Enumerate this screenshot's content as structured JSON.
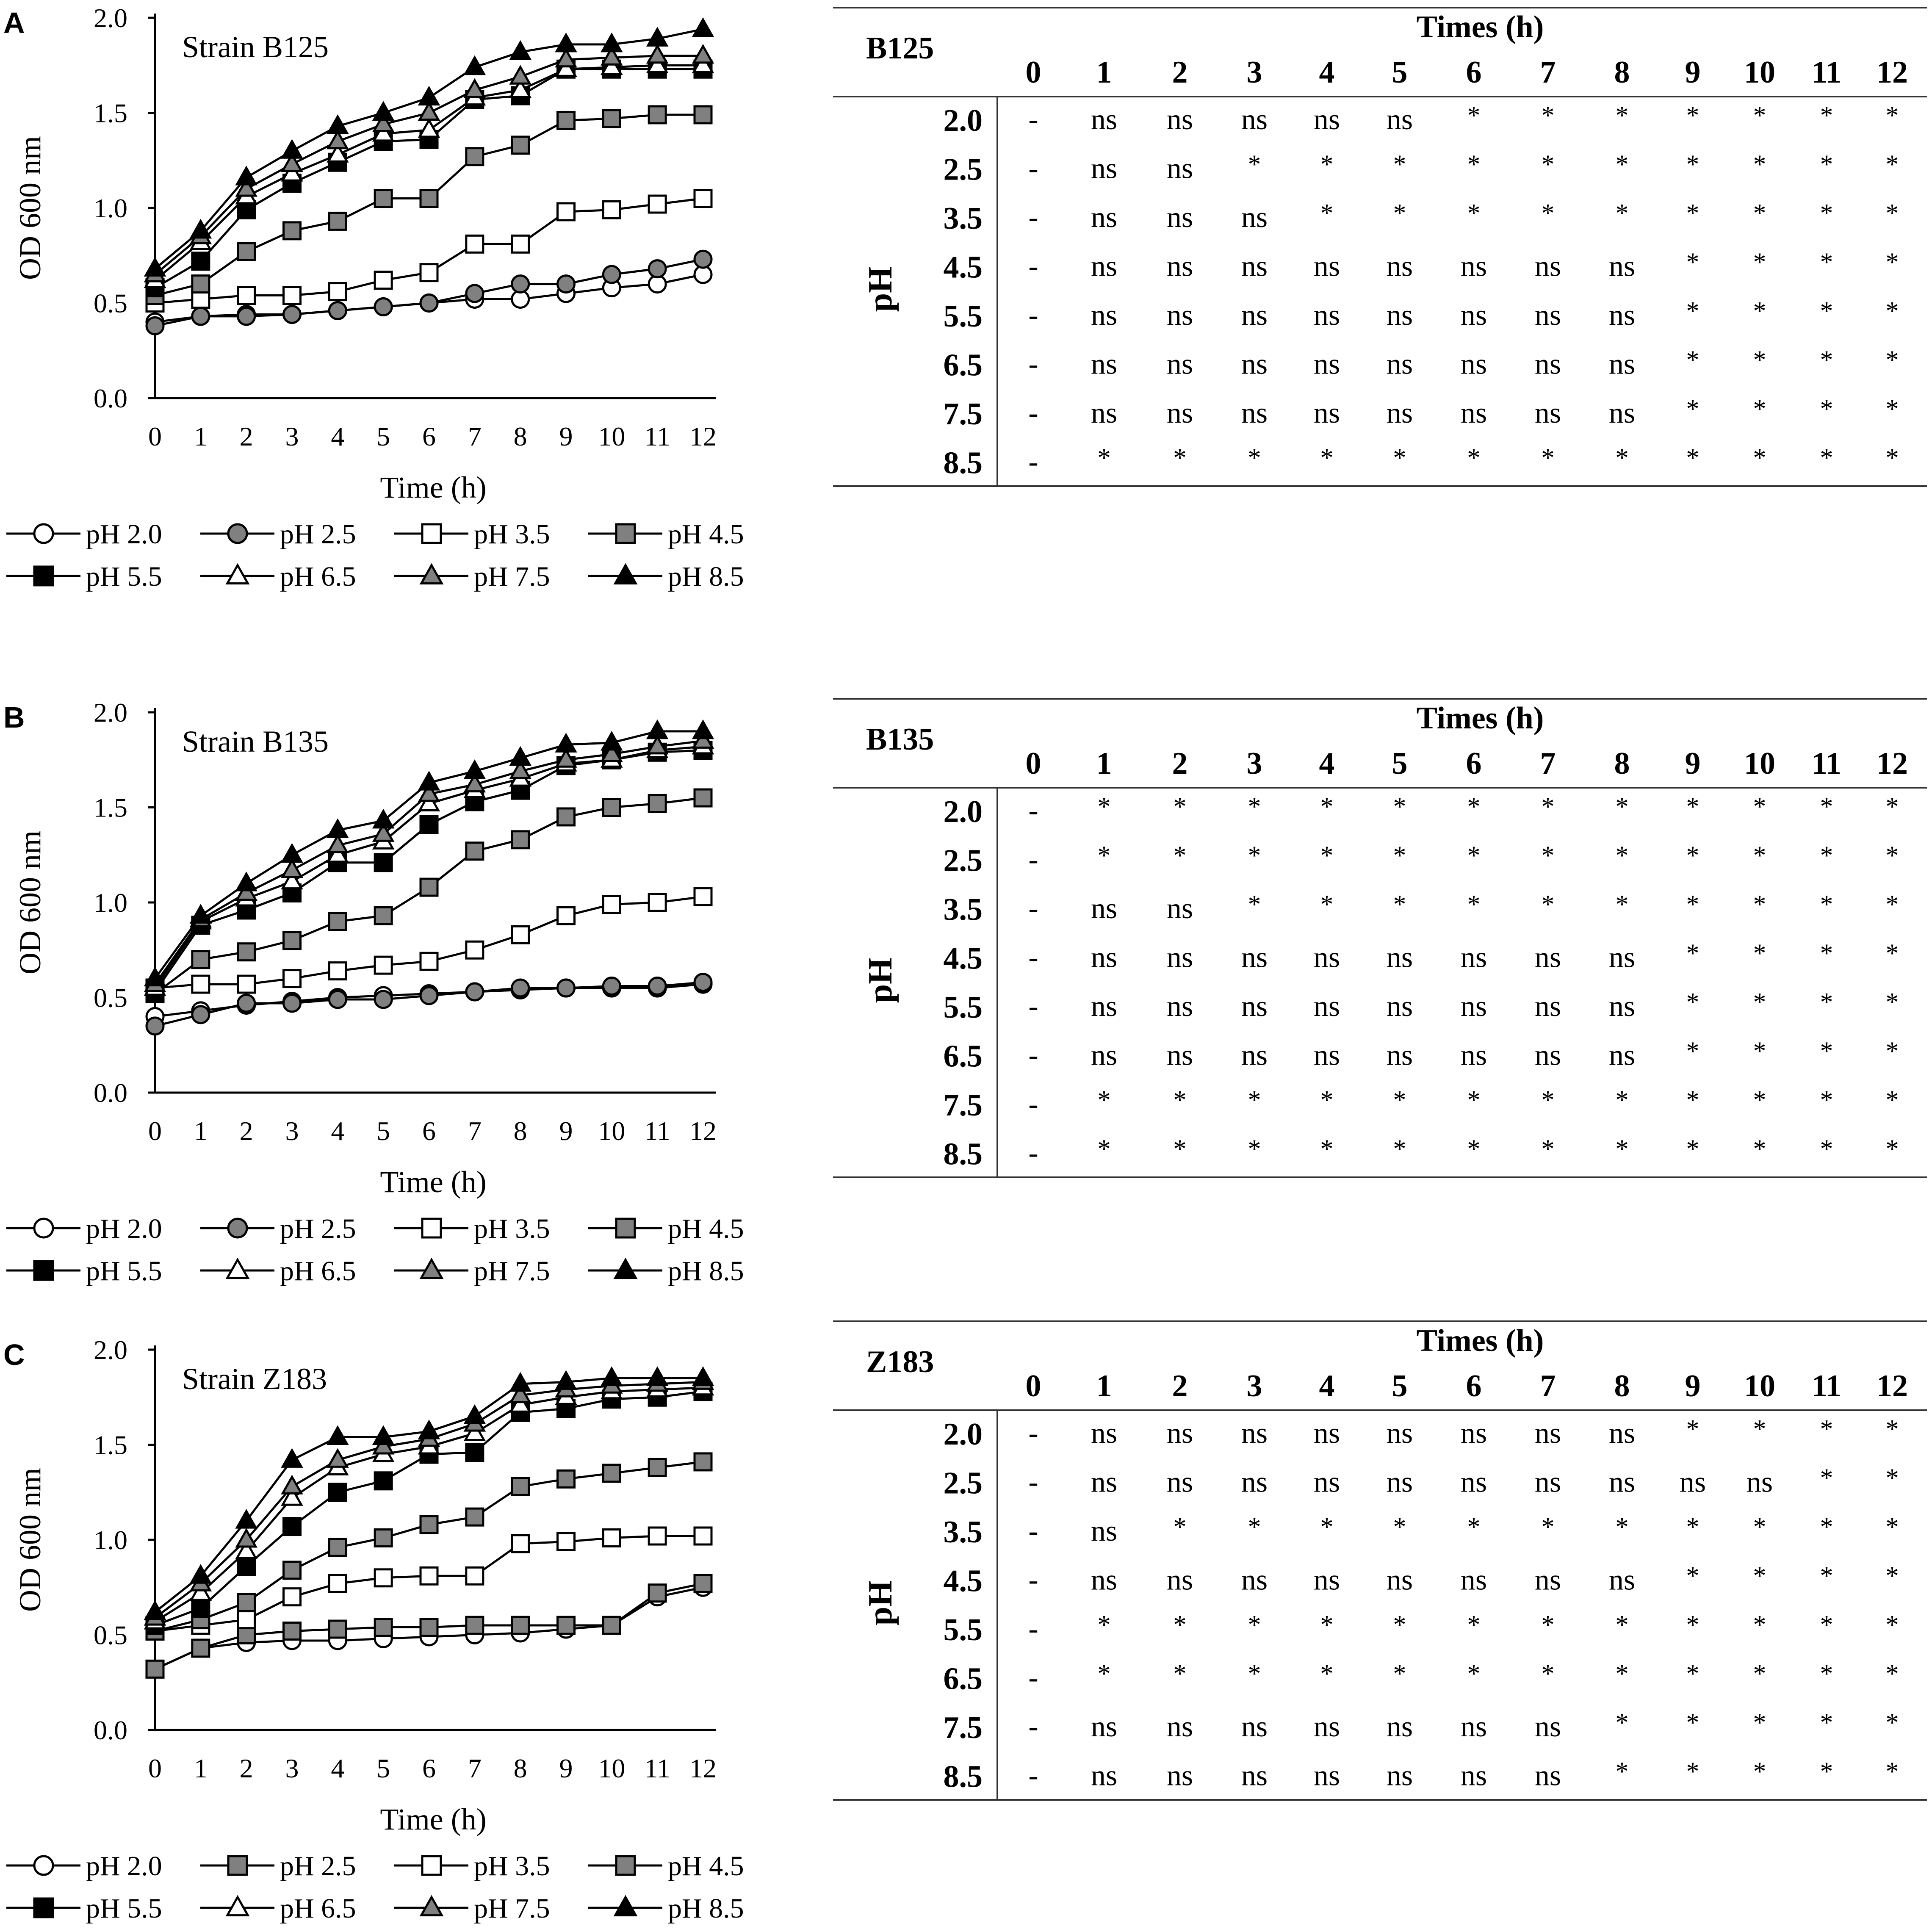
{
  "chart_data": [
    {
      "panel_label": "A",
      "type": "line",
      "title": "Strain B125",
      "xlabel": "Time (h)",
      "ylabel": "OD 600 nm",
      "x": [
        0,
        1,
        2,
        3,
        4,
        5,
        6,
        7,
        8,
        9,
        10,
        11,
        12
      ],
      "xtick_labels": [
        "0",
        "1",
        "2",
        "3",
        "4",
        "5",
        "6",
        "7",
        "8",
        "9",
        "10",
        "11",
        "12"
      ],
      "ylim": [
        0,
        2.0
      ],
      "ytick_labels": [
        "0.0",
        "0.5",
        "1.0",
        "1.5",
        "2.0"
      ],
      "grid": false,
      "legend_position": "bottom",
      "series": [
        {
          "name": "pH 2.0",
          "marker": "circle",
          "fill": "white",
          "values": [
            0.4,
            0.43,
            0.44,
            0.44,
            0.46,
            0.48,
            0.5,
            0.52,
            0.52,
            0.55,
            0.58,
            0.6,
            0.65
          ]
        },
        {
          "name": "pH 2.5",
          "marker": "circle",
          "fill": "gray",
          "values": [
            0.38,
            0.43,
            0.43,
            0.44,
            0.46,
            0.48,
            0.5,
            0.55,
            0.6,
            0.6,
            0.65,
            0.68,
            0.73
          ]
        },
        {
          "name": "pH 3.5",
          "marker": "square",
          "fill": "white",
          "values": [
            0.5,
            0.52,
            0.54,
            0.54,
            0.56,
            0.62,
            0.66,
            0.81,
            0.81,
            0.98,
            0.99,
            1.02,
            1.05
          ]
        },
        {
          "name": "pH 4.5",
          "marker": "square",
          "fill": "gray",
          "values": [
            0.54,
            0.6,
            0.77,
            0.88,
            0.93,
            1.05,
            1.05,
            1.27,
            1.33,
            1.46,
            1.47,
            1.49,
            1.49
          ]
        },
        {
          "name": "pH 5.5",
          "marker": "square",
          "fill": "black",
          "values": [
            0.58,
            0.72,
            0.99,
            1.13,
            1.24,
            1.35,
            1.36,
            1.57,
            1.59,
            1.73,
            1.73,
            1.73,
            1.73
          ]
        },
        {
          "name": "pH 6.5",
          "marker": "triangle",
          "fill": "white",
          "values": [
            0.62,
            0.82,
            1.06,
            1.18,
            1.28,
            1.39,
            1.41,
            1.58,
            1.62,
            1.73,
            1.74,
            1.75,
            1.75
          ]
        },
        {
          "name": "pH 7.5",
          "marker": "triangle",
          "fill": "gray",
          "values": [
            0.65,
            0.85,
            1.1,
            1.23,
            1.35,
            1.44,
            1.5,
            1.62,
            1.69,
            1.78,
            1.79,
            1.8,
            1.8
          ]
        },
        {
          "name": "pH 8.5",
          "marker": "triangle",
          "fill": "black",
          "values": [
            0.68,
            0.88,
            1.16,
            1.3,
            1.43,
            1.5,
            1.58,
            1.74,
            1.82,
            1.86,
            1.86,
            1.89,
            1.94
          ]
        }
      ]
    },
    {
      "panel_label": "B",
      "type": "line",
      "title": "Strain B135",
      "xlabel": "Time (h)",
      "ylabel": "OD 600 nm",
      "x": [
        0,
        1,
        2,
        3,
        4,
        5,
        6,
        7,
        8,
        9,
        10,
        11,
        12
      ],
      "xtick_labels": [
        "0",
        "1",
        "2",
        "3",
        "4",
        "5",
        "6",
        "7",
        "8",
        "9",
        "10",
        "11",
        "12"
      ],
      "ylim": [
        0,
        2.0
      ],
      "ytick_labels": [
        "0.0",
        "0.5",
        "1.0",
        "1.5",
        "2.0"
      ],
      "grid": false,
      "legend_position": "bottom",
      "series": [
        {
          "name": "pH 2.0",
          "marker": "circle",
          "fill": "white",
          "values": [
            0.4,
            0.43,
            0.46,
            0.48,
            0.5,
            0.51,
            0.52,
            0.53,
            0.54,
            0.55,
            0.55,
            0.55,
            0.57
          ]
        },
        {
          "name": "pH 2.5",
          "marker": "circle",
          "fill": "gray",
          "values": [
            0.35,
            0.41,
            0.47,
            0.47,
            0.49,
            0.49,
            0.51,
            0.53,
            0.55,
            0.55,
            0.56,
            0.56,
            0.58
          ]
        },
        {
          "name": "pH 3.5",
          "marker": "square",
          "fill": "white",
          "values": [
            0.55,
            0.57,
            0.57,
            0.6,
            0.64,
            0.67,
            0.69,
            0.75,
            0.83,
            0.93,
            0.99,
            1.0,
            1.03
          ]
        },
        {
          "name": "pH 4.5",
          "marker": "square",
          "fill": "gray",
          "values": [
            0.52,
            0.7,
            0.74,
            0.8,
            0.9,
            0.93,
            1.08,
            1.27,
            1.33,
            1.45,
            1.5,
            1.52,
            1.55
          ]
        },
        {
          "name": "pH 5.5",
          "marker": "square",
          "fill": "black",
          "values": [
            0.53,
            0.88,
            0.96,
            1.05,
            1.21,
            1.21,
            1.41,
            1.53,
            1.59,
            1.72,
            1.75,
            1.79,
            1.8
          ]
        },
        {
          "name": "pH 6.5",
          "marker": "triangle",
          "fill": "white",
          "values": [
            0.55,
            0.9,
            1.02,
            1.11,
            1.25,
            1.32,
            1.52,
            1.59,
            1.65,
            1.73,
            1.75,
            1.8,
            1.82
          ]
        },
        {
          "name": "pH 7.5",
          "marker": "triangle",
          "fill": "gray",
          "values": [
            0.57,
            0.91,
            1.05,
            1.17,
            1.3,
            1.36,
            1.57,
            1.62,
            1.69,
            1.75,
            1.78,
            1.82,
            1.85
          ]
        },
        {
          "name": "pH 8.5",
          "marker": "triangle",
          "fill": "black",
          "values": [
            0.6,
            0.93,
            1.1,
            1.25,
            1.38,
            1.43,
            1.63,
            1.69,
            1.76,
            1.83,
            1.84,
            1.9,
            1.9
          ]
        }
      ]
    },
    {
      "panel_label": "C",
      "type": "line",
      "title": "Strain Z183",
      "xlabel": "Time (h)",
      "ylabel": "OD 600 nm",
      "x": [
        0,
        1,
        2,
        3,
        4,
        5,
        6,
        7,
        8,
        9,
        10,
        11,
        12
      ],
      "xtick_labels": [
        "0",
        "1",
        "2",
        "3",
        "4",
        "5",
        "6",
        "7",
        "8",
        "9",
        "10",
        "11",
        "12"
      ],
      "ylim": [
        0,
        2.0
      ],
      "ytick_labels": [
        "0.0",
        "0.5",
        "1.0",
        "1.5",
        "2.0"
      ],
      "grid": false,
      "legend_position": "bottom",
      "series": [
        {
          "name": "pH 2.0",
          "marker": "circle",
          "fill": "white",
          "values": [
            0.32,
            0.43,
            0.46,
            0.47,
            0.47,
            0.48,
            0.49,
            0.5,
            0.51,
            0.53,
            0.55,
            0.7,
            0.75
          ]
        },
        {
          "name": "pH 2.5",
          "marker": "square",
          "fill": "gray",
          "values": [
            0.32,
            0.43,
            0.5,
            0.52,
            0.53,
            0.54,
            0.54,
            0.55,
            0.55,
            0.55,
            0.55,
            0.72,
            0.77
          ]
        },
        {
          "name": "pH 3.5",
          "marker": "square",
          "fill": "white",
          "values": [
            0.52,
            0.55,
            0.58,
            0.7,
            0.77,
            0.8,
            0.81,
            0.81,
            0.98,
            0.99,
            1.01,
            1.02,
            1.02
          ]
        },
        {
          "name": "pH 4.5",
          "marker": "square",
          "fill": "gray",
          "values": [
            0.52,
            0.58,
            0.67,
            0.84,
            0.96,
            1.01,
            1.08,
            1.12,
            1.28,
            1.32,
            1.35,
            1.38,
            1.41
          ]
        },
        {
          "name": "pH 5.5",
          "marker": "square",
          "fill": "black",
          "values": [
            0.55,
            0.64,
            0.86,
            1.07,
            1.25,
            1.31,
            1.45,
            1.46,
            1.67,
            1.69,
            1.74,
            1.75,
            1.78
          ]
        },
        {
          "name": "pH 6.5",
          "marker": "triangle",
          "fill": "white",
          "values": [
            0.57,
            0.72,
            0.94,
            1.22,
            1.38,
            1.45,
            1.49,
            1.56,
            1.71,
            1.75,
            1.78,
            1.79,
            1.8
          ]
        },
        {
          "name": "pH 7.5",
          "marker": "triangle",
          "fill": "gray",
          "values": [
            0.59,
            0.77,
            1.0,
            1.28,
            1.42,
            1.49,
            1.53,
            1.61,
            1.76,
            1.79,
            1.81,
            1.82,
            1.83
          ]
        },
        {
          "name": "pH 8.5",
          "marker": "triangle",
          "fill": "black",
          "values": [
            0.62,
            0.81,
            1.1,
            1.42,
            1.54,
            1.54,
            1.57,
            1.65,
            1.82,
            1.83,
            1.85,
            1.85,
            1.85
          ]
        }
      ]
    },
    {
      "type": "table",
      "strain": "B125",
      "col_header": "Times (h)",
      "row_header": "pH",
      "columns": [
        "0",
        "1",
        "2",
        "3",
        "4",
        "5",
        "6",
        "7",
        "8",
        "9",
        "10",
        "11",
        "12"
      ],
      "rows": [
        {
          "label": "2.0",
          "cells": [
            "-",
            "ns",
            "ns",
            "ns",
            "ns",
            "ns",
            "*",
            "*",
            "*",
            "*",
            "*",
            "*",
            "*"
          ]
        },
        {
          "label": "2.5",
          "cells": [
            "-",
            "ns",
            "ns",
            "*",
            "*",
            "*",
            "*",
            "*",
            "*",
            "*",
            "*",
            "*",
            "*"
          ]
        },
        {
          "label": "3.5",
          "cells": [
            "-",
            "ns",
            "ns",
            "ns",
            "*",
            "*",
            "*",
            "*",
            "*",
            "*",
            "*",
            "*",
            "*"
          ]
        },
        {
          "label": "4.5",
          "cells": [
            "-",
            "ns",
            "ns",
            "ns",
            "ns",
            "ns",
            "ns",
            "ns",
            "ns",
            "*",
            "*",
            "*",
            "*"
          ]
        },
        {
          "label": "5.5",
          "cells": [
            "-",
            "ns",
            "ns",
            "ns",
            "ns",
            "ns",
            "ns",
            "ns",
            "ns",
            "*",
            "*",
            "*",
            "*"
          ]
        },
        {
          "label": "6.5",
          "cells": [
            "-",
            "ns",
            "ns",
            "ns",
            "ns",
            "ns",
            "ns",
            "ns",
            "ns",
            "*",
            "*",
            "*",
            "*"
          ]
        },
        {
          "label": "7.5",
          "cells": [
            "-",
            "ns",
            "ns",
            "ns",
            "ns",
            "ns",
            "ns",
            "ns",
            "ns",
            "*",
            "*",
            "*",
            "*"
          ]
        },
        {
          "label": "8.5",
          "cells": [
            "-",
            "*",
            "*",
            "*",
            "*",
            "*",
            "*",
            "*",
            "*",
            "*",
            "*",
            "*",
            "*"
          ]
        }
      ]
    },
    {
      "type": "table",
      "strain": "B135",
      "col_header": "Times (h)",
      "row_header": "pH",
      "columns": [
        "0",
        "1",
        "2",
        "3",
        "4",
        "5",
        "6",
        "7",
        "8",
        "9",
        "10",
        "11",
        "12"
      ],
      "rows": [
        {
          "label": "2.0",
          "cells": [
            "-",
            "*",
            "*",
            "*",
            "*",
            "*",
            "*",
            "*",
            "*",
            "*",
            "*",
            "*",
            "*"
          ]
        },
        {
          "label": "2.5",
          "cells": [
            "-",
            "*",
            "*",
            "*",
            "*",
            "*",
            "*",
            "*",
            "*",
            "*",
            "*",
            "*",
            "*"
          ]
        },
        {
          "label": "3.5",
          "cells": [
            "-",
            "ns",
            "ns",
            "*",
            "*",
            "*",
            "*",
            "*",
            "*",
            "*",
            "*",
            "*",
            "*"
          ]
        },
        {
          "label": "4.5",
          "cells": [
            "-",
            "ns",
            "ns",
            "ns",
            "ns",
            "ns",
            "ns",
            "ns",
            "ns",
            "*",
            "*",
            "*",
            "*"
          ]
        },
        {
          "label": "5.5",
          "cells": [
            "-",
            "ns",
            "ns",
            "ns",
            "ns",
            "ns",
            "ns",
            "ns",
            "ns",
            "*",
            "*",
            "*",
            "*"
          ]
        },
        {
          "label": "6.5",
          "cells": [
            "-",
            "ns",
            "ns",
            "ns",
            "ns",
            "ns",
            "ns",
            "ns",
            "ns",
            "*",
            "*",
            "*",
            "*"
          ]
        },
        {
          "label": "7.5",
          "cells": [
            "-",
            "*",
            "*",
            "*",
            "*",
            "*",
            "*",
            "*",
            "*",
            "*",
            "*",
            "*",
            "*"
          ]
        },
        {
          "label": "8.5",
          "cells": [
            "-",
            "*",
            "*",
            "*",
            "*",
            "*",
            "*",
            "*",
            "*",
            "*",
            "*",
            "*",
            "*"
          ]
        }
      ]
    },
    {
      "type": "table",
      "strain": "Z183",
      "col_header": "Times (h)",
      "row_header": "pH",
      "columns": [
        "0",
        "1",
        "2",
        "3",
        "4",
        "5",
        "6",
        "7",
        "8",
        "9",
        "10",
        "11",
        "12"
      ],
      "rows": [
        {
          "label": "2.0",
          "cells": [
            "-",
            "ns",
            "ns",
            "ns",
            "ns",
            "ns",
            "ns",
            "ns",
            "ns",
            "*",
            "*",
            "*",
            "*"
          ]
        },
        {
          "label": "2.5",
          "cells": [
            "-",
            "ns",
            "ns",
            "ns",
            "ns",
            "ns",
            "ns",
            "ns",
            "ns",
            "ns",
            "ns",
            "*",
            "*"
          ]
        },
        {
          "label": "3.5",
          "cells": [
            "-",
            "ns",
            "*",
            "*",
            "*",
            "*",
            "*",
            "*",
            "*",
            "*",
            "*",
            "*",
            "*"
          ]
        },
        {
          "label": "4.5",
          "cells": [
            "-",
            "ns",
            "ns",
            "ns",
            "ns",
            "ns",
            "ns",
            "ns",
            "ns",
            "*",
            "*",
            "*",
            "*"
          ]
        },
        {
          "label": "5.5",
          "cells": [
            "-",
            "*",
            "*",
            "*",
            "*",
            "*",
            "*",
            "*",
            "*",
            "*",
            "*",
            "*",
            "*"
          ]
        },
        {
          "label": "6.5",
          "cells": [
            "-",
            "*",
            "*",
            "*",
            "*",
            "*",
            "*",
            "*",
            "*",
            "*",
            "*",
            "*",
            "*"
          ]
        },
        {
          "label": "7.5",
          "cells": [
            "-",
            "ns",
            "ns",
            "ns",
            "ns",
            "ns",
            "ns",
            "ns",
            "*",
            "*",
            "*",
            "*",
            "*"
          ]
        },
        {
          "label": "8.5",
          "cells": [
            "-",
            "ns",
            "ns",
            "ns",
            "ns",
            "ns",
            "ns",
            "ns",
            "*",
            "*",
            "*",
            "*",
            "*"
          ]
        }
      ]
    }
  ],
  "colors": {
    "ink": "#000000",
    "gray_fill": "#808080",
    "white_fill": "#ffffff",
    "rule": "#333333"
  }
}
